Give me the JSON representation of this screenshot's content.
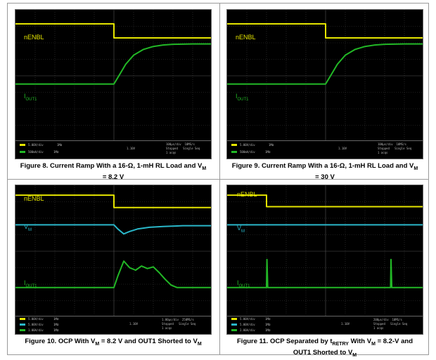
{
  "colors": {
    "yellow": "#e5e500",
    "cyan": "#2ab7c9",
    "green": "#22b826",
    "grid": "#3a3a3a",
    "scope_bg": "#000000"
  },
  "labels": {
    "nenbl": "nENBL",
    "iout_main": "I",
    "iout_sub": "OUT1",
    "vm_main": "V",
    "vm_sub": "M"
  },
  "captions": {
    "fig8": {
      "p1": "Figure 8. Current Ramp With a 16-Ω, 1-mH RL Load and V",
      "s1": "M",
      "p2": " = 8.2 V"
    },
    "fig9": {
      "p1": "Figure 9. Current Ramp With a 16-Ω, 1-mH RL Load and V",
      "s1": "M",
      "p2": " = 30 V"
    },
    "fig10": {
      "p1": "Figure 10. OCP With V",
      "s1": "M",
      "p2": " = 8.2 V and OUT1 Shorted to V",
      "s2": "M"
    },
    "fig11": {
      "p1": "Figure 11. OCP Separated by t",
      "s1": "RETRY",
      "p2": " With V",
      "s2": "M",
      "p3": " = 8.2-V and OUT1 Shorted to V",
      "s3": "M"
    }
  },
  "chart_data": [
    {
      "type": "line",
      "id": "fig8",
      "xlim": [
        0,
        10
      ],
      "ylim": [
        0,
        8
      ],
      "grid": true,
      "series": [
        {
          "name": "nENBL",
          "color": "yellow",
          "x": [
            0,
            5,
            5,
            10
          ],
          "y": [
            7.15,
            7.15,
            6.3,
            6.3
          ]
        },
        {
          "name": "IOUT1",
          "color": "green",
          "x": [
            0,
            5,
            5.3,
            5.6,
            6.0,
            6.5,
            7.0,
            7.5,
            8.0,
            9.0,
            10
          ],
          "y": [
            3.5,
            3.5,
            4.1,
            4.7,
            5.25,
            5.6,
            5.78,
            5.87,
            5.91,
            5.93,
            5.93
          ]
        }
      ]
    },
    {
      "type": "line",
      "id": "fig9",
      "xlim": [
        0,
        10
      ],
      "ylim": [
        0,
        8
      ],
      "grid": true,
      "series": [
        {
          "name": "nENBL",
          "color": "yellow",
          "x": [
            0,
            5,
            5,
            10
          ],
          "y": [
            7.15,
            7.15,
            6.3,
            6.3
          ]
        },
        {
          "name": "IOUT1",
          "color": "green",
          "x": [
            0,
            5,
            5.3,
            5.6,
            6.0,
            6.5,
            7.0,
            7.5,
            8.0,
            9.0,
            10
          ],
          "y": [
            3.5,
            3.5,
            4.1,
            4.7,
            5.25,
            5.6,
            5.78,
            5.87,
            5.91,
            5.93,
            5.93
          ]
        }
      ]
    },
    {
      "type": "line",
      "id": "fig10",
      "xlim": [
        0,
        10
      ],
      "ylim": [
        0,
        8
      ],
      "grid": true,
      "series": [
        {
          "name": "nENBL",
          "color": "yellow",
          "x": [
            0,
            5,
            5,
            10
          ],
          "y": [
            7.4,
            7.4,
            6.65,
            6.65
          ]
        },
        {
          "name": "VM",
          "color": "cyan",
          "x": [
            0,
            5,
            5.2,
            5.5,
            5.8,
            6.2,
            6.8,
            7.5,
            8.5,
            10
          ],
          "y": [
            5.6,
            5.6,
            5.35,
            5.05,
            5.2,
            5.35,
            5.45,
            5.5,
            5.55,
            5.55
          ]
        },
        {
          "name": "IOUT1",
          "color": "green",
          "x": [
            0,
            5,
            5.2,
            5.5,
            5.8,
            6.1,
            6.4,
            6.7,
            7.0,
            7.3,
            7.6,
            7.9,
            8.2,
            8.5,
            10
          ],
          "y": [
            1.8,
            1.8,
            2.5,
            3.4,
            3.0,
            2.85,
            3.1,
            2.95,
            3.05,
            2.7,
            2.3,
            1.95,
            1.8,
            1.8,
            1.8
          ]
        }
      ]
    },
    {
      "type": "line",
      "id": "fig11",
      "xlim": [
        0,
        10
      ],
      "ylim": [
        0,
        8
      ],
      "grid": true,
      "series": [
        {
          "name": "nENBL",
          "color": "yellow",
          "x": [
            0,
            2,
            2,
            10
          ],
          "y": [
            7.4,
            7.4,
            6.7,
            6.7
          ]
        },
        {
          "name": "VM",
          "color": "cyan",
          "x": [
            0,
            10
          ],
          "y": [
            5.6,
            5.6
          ]
        },
        {
          "name": "IOUT1",
          "color": "green",
          "x": [
            0,
            2.0,
            2.02,
            2.06,
            2.1,
            8.3,
            8.32,
            8.36,
            8.4,
            10
          ],
          "y": [
            1.8,
            1.8,
            3.5,
            1.8,
            1.8,
            1.8,
            3.5,
            1.8,
            1.8,
            1.8
          ]
        }
      ]
    }
  ]
}
